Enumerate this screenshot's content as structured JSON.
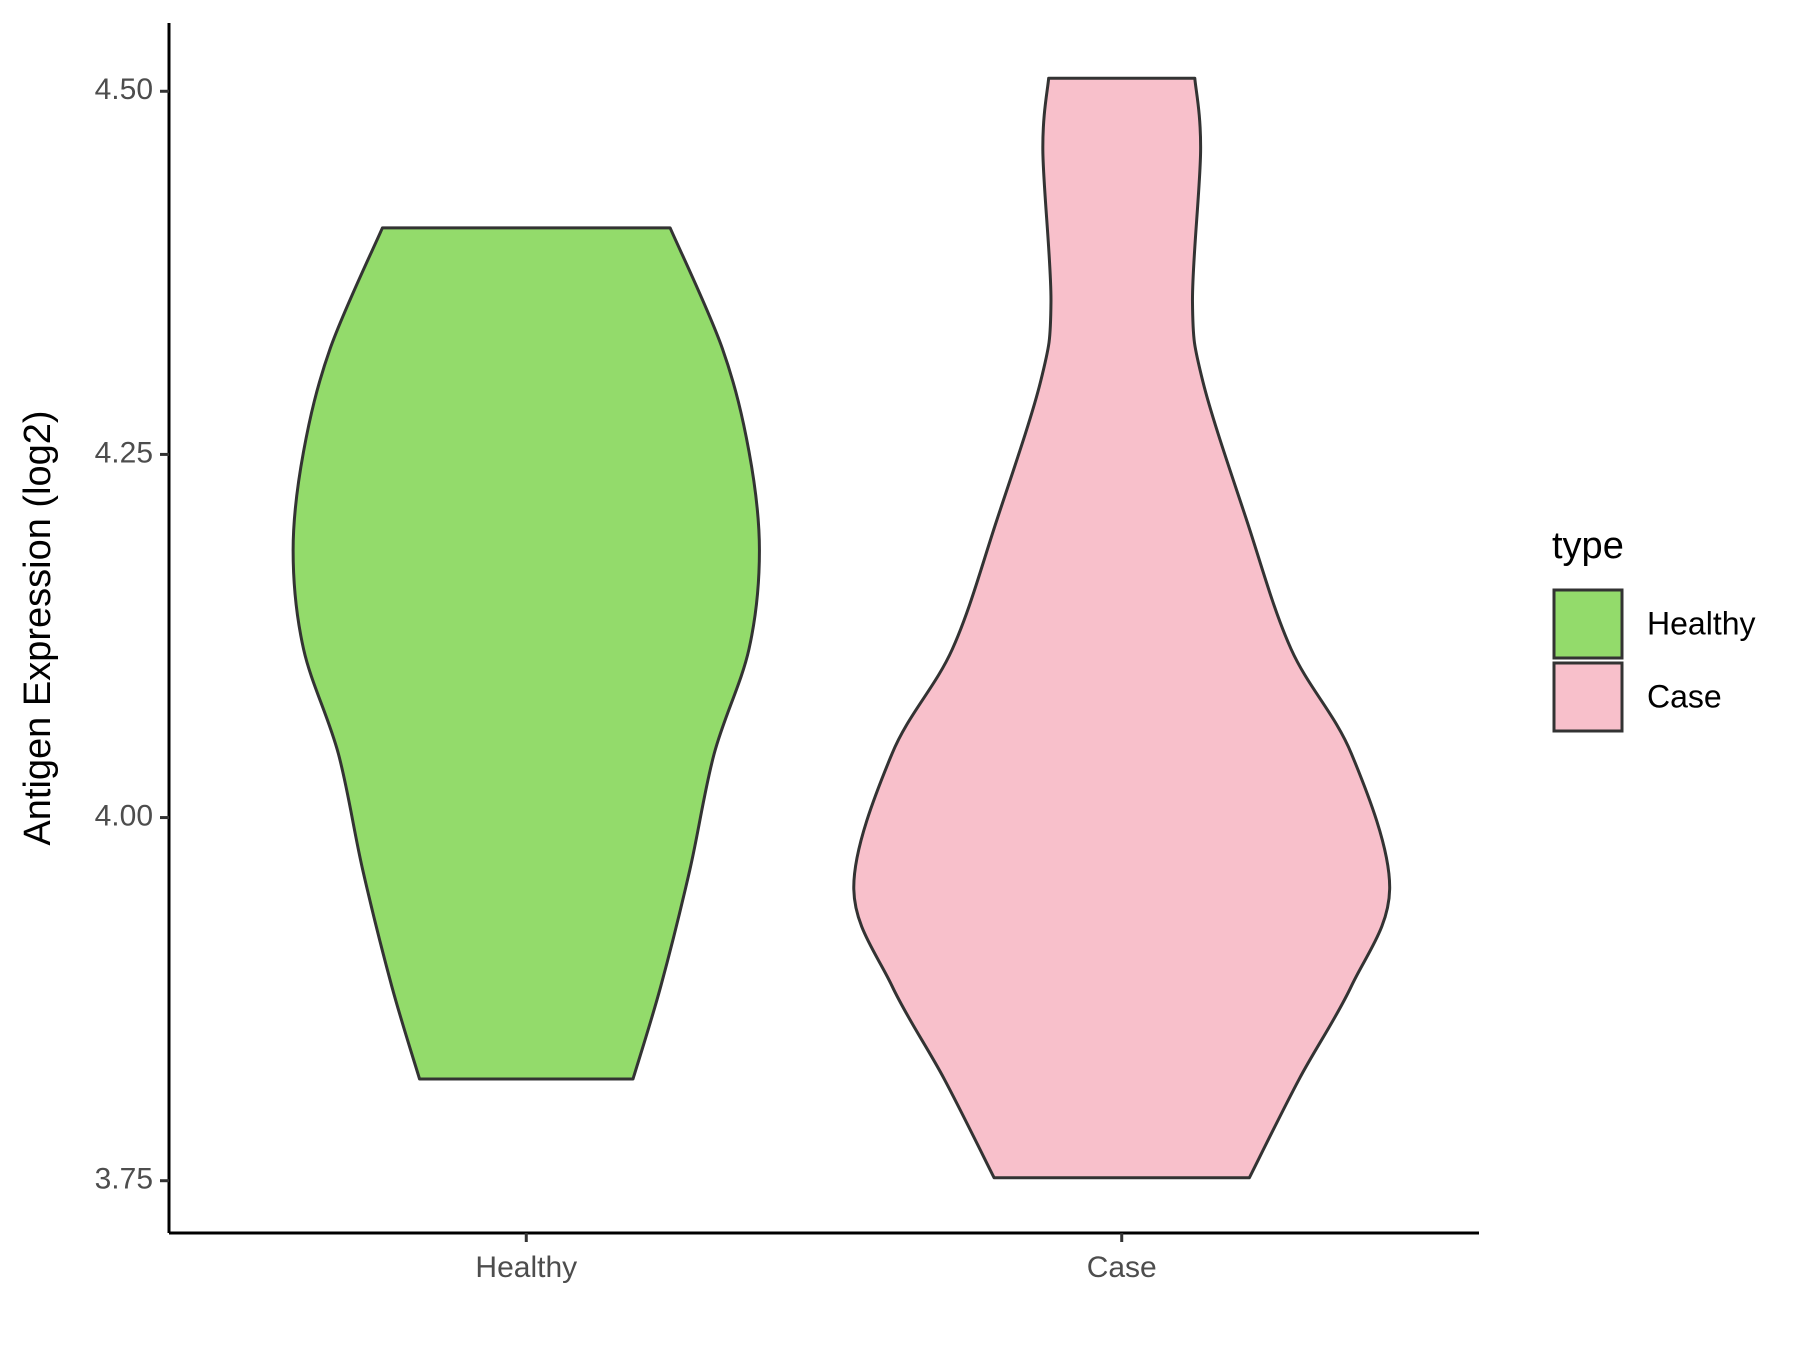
{
  "chart_data": {
    "type": "violin",
    "ylabel": "Antigen Expression (log2)",
    "categories": [
      "Healthy",
      "Case"
    ],
    "legend_title": "type",
    "legend_position": "right",
    "ylim": [
      3.714,
      4.547
    ],
    "yticks": [
      3.75,
      {
        "value": 4.0,
        "label": "4.00"
      },
      4.25,
      {
        "value": 4.5,
        "label": "4.50"
      }
    ],
    "series": [
      {
        "name": "Healthy",
        "color": "#93db6b",
        "y": [
          3.82,
          3.884,
          3.964,
          4.044,
          4.116,
          4.184,
          4.252,
          4.323,
          4.406
        ],
        "density": [
          0.92,
          1.16,
          1.41,
          1.62,
          1.92,
          2.01,
          1.92,
          1.69,
          1.24
        ]
      },
      {
        "name": "Case",
        "color": "#f8c0cb",
        "y": [
          3.752,
          3.82,
          3.884,
          3.952,
          4.044,
          4.116,
          4.204,
          4.3,
          4.355,
          4.459,
          4.509
        ],
        "density": [
          1.1,
          1.53,
          1.98,
          2.31,
          1.98,
          1.46,
          1.08,
          0.7,
          0.61,
          0.68,
          0.63
        ]
      }
    ]
  }
}
